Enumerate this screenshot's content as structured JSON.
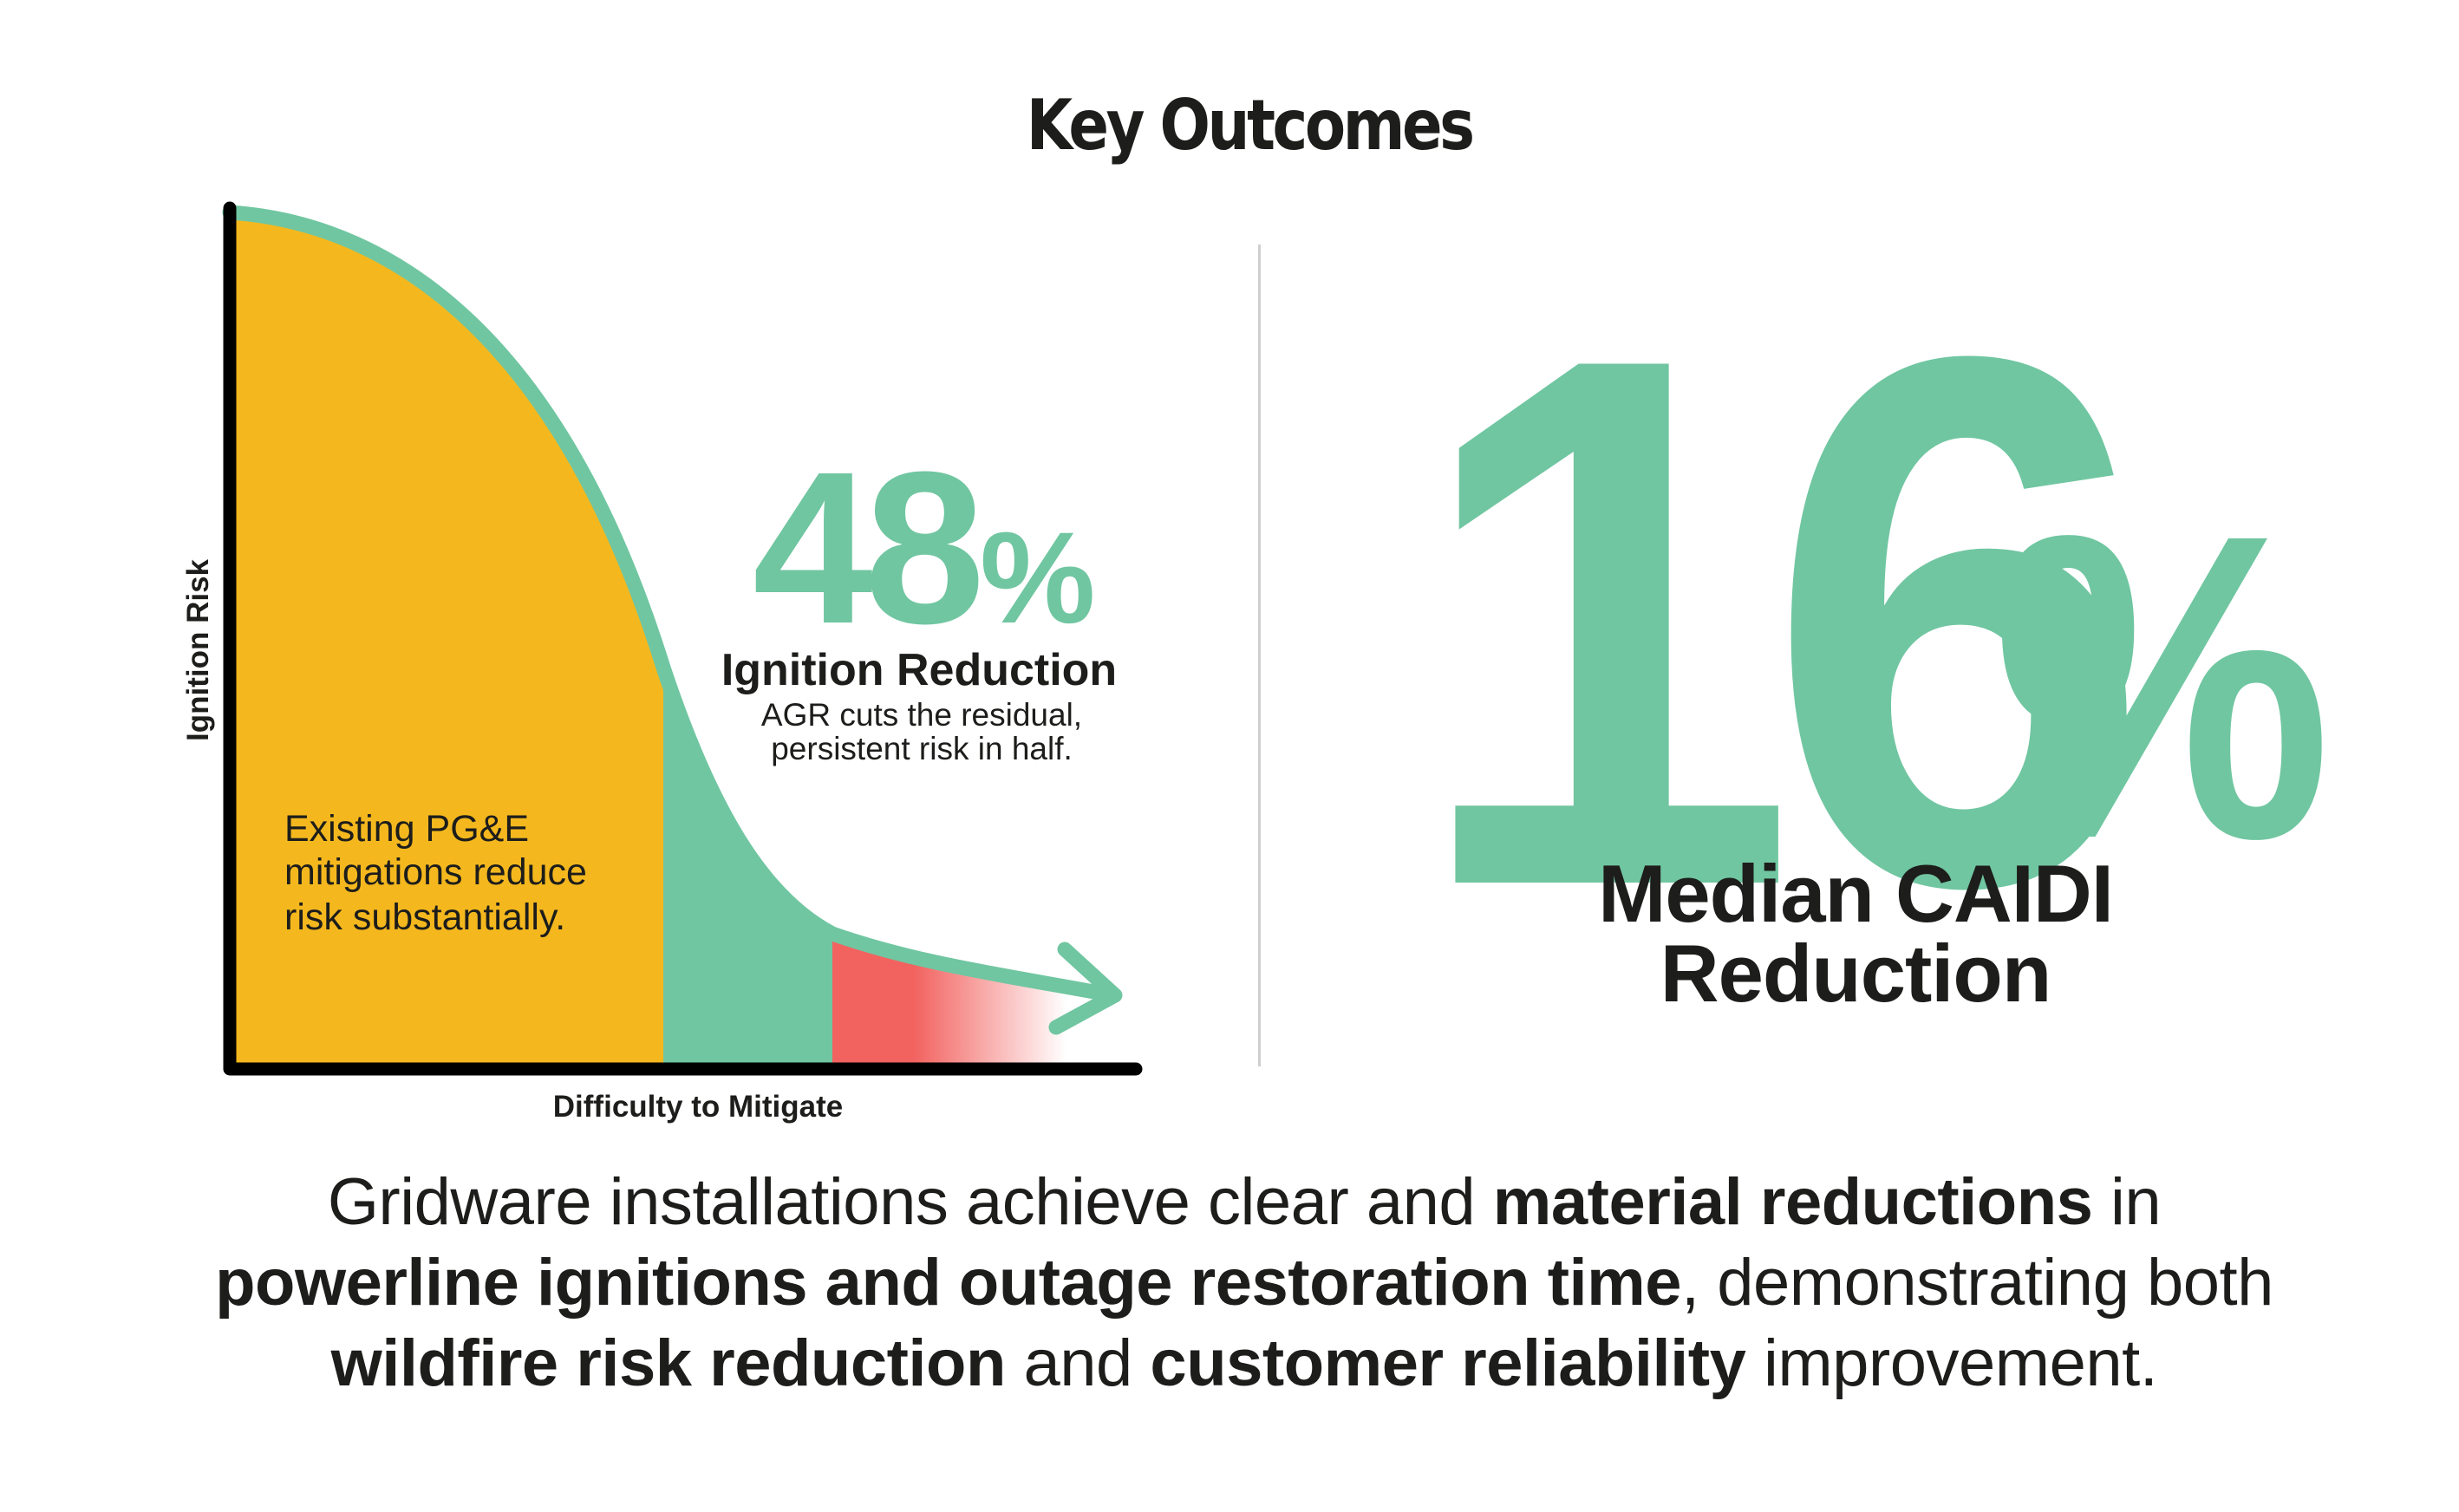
{
  "title": "Key Outcomes",
  "diagram": {
    "y_axis_label": "Ignition Risk",
    "x_axis_label": "Difficulty to Mitigate",
    "existing_text_lines": [
      "Existing PG&E",
      "mitigations reduce",
      "risk substantially."
    ],
    "stat_value": "48",
    "stat_unit": "%",
    "stat_label": "Ignition Reduction",
    "stat_desc_lines": [
      "AGR cuts the residual,",
      "persistent risk in half."
    ],
    "colors": {
      "existing": "#f4b81e",
      "agr": "#70c6a1",
      "residual": "#f26360",
      "curve": "#70c6a1",
      "axis": "#000000"
    }
  },
  "big_stat": {
    "value": "16",
    "unit": "%",
    "label_lines": [
      "Median CAIDI",
      "Reduction"
    ]
  },
  "summary": {
    "lines": [
      [
        {
          "text": "Gridware installations achieve clear and ",
          "bold": false
        },
        {
          "text": "material reductions",
          "bold": true
        },
        {
          "text": " in",
          "bold": false
        }
      ],
      [
        {
          "text": "powerline ignitions and outage restoration time",
          "bold": true
        },
        {
          "text": ", demonstrating both",
          "bold": false
        }
      ],
      [
        {
          "text": "wildfire risk reduction",
          "bold": true
        },
        {
          "text": " and ",
          "bold": false
        },
        {
          "text": "customer reliability",
          "bold": true
        },
        {
          "text": " improvement.",
          "bold": false
        }
      ]
    ]
  }
}
